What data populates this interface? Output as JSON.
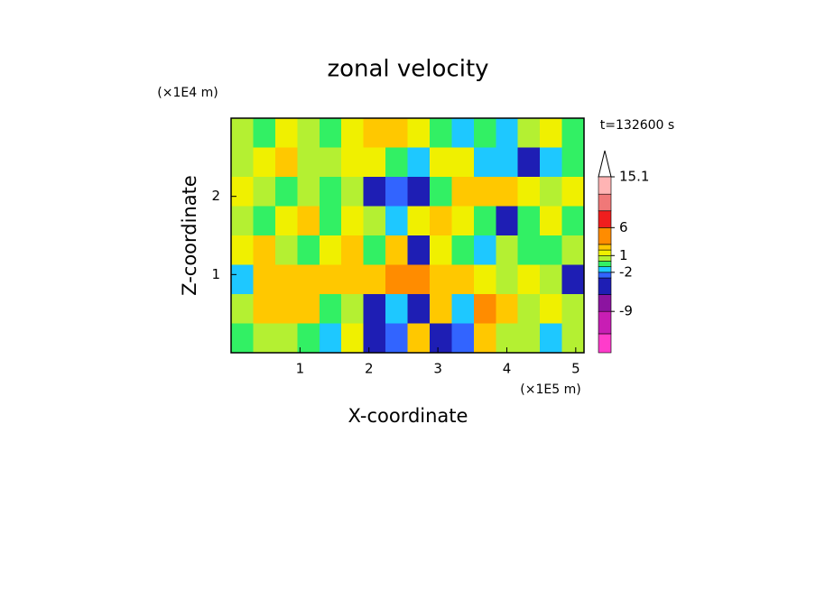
{
  "chart_data": {
    "type": "contour",
    "title": "zonal velocity",
    "xlabel": "X-coordinate",
    "ylabel": "Z-coordinate",
    "xunit": "(×1E5 m)",
    "yunit": "(×1E4 m)",
    "time_label": "t=132600 s",
    "xlim": [
      0,
      5.12
    ],
    "ylim": [
      0,
      3
    ],
    "xticks": [
      1,
      2,
      3,
      4,
      5
    ],
    "yticks": [
      1,
      2
    ],
    "x": [
      0.16,
      0.48,
      0.8,
      1.12,
      1.44,
      1.76,
      2.08,
      2.4,
      2.72,
      3.04,
      3.36,
      3.68,
      4.0,
      4.32,
      4.64,
      4.96
    ],
    "z": [
      2.81,
      2.44,
      2.06,
      1.69,
      1.31,
      0.94,
      0.56,
      0.19
    ],
    "values": [
      [
        0.5,
        -0.5,
        1.5,
        0.5,
        -0.5,
        1.5,
        2.5,
        2,
        1,
        -0.5,
        -1.5,
        -0.5,
        -1.5,
        0.5,
        1.5,
        -0.5
      ],
      [
        0.5,
        1.5,
        2,
        0.5,
        0.5,
        1.5,
        1.5,
        -0.5,
        -1.5,
        1,
        1.5,
        -1.5,
        -1.5,
        -4,
        -1.5,
        -0.5
      ],
      [
        1.5,
        0.5,
        -0.5,
        0.5,
        -0.5,
        0.5,
        -4,
        -2.5,
        -4,
        -0.5,
        2,
        2.5,
        2,
        1.5,
        0.5,
        1.5
      ],
      [
        0.5,
        -0.5,
        1.5,
        2,
        -0.5,
        1.5,
        0.5,
        -1.5,
        1.5,
        2.5,
        1.5,
        -0.5,
        -4,
        -0.5,
        1.5,
        -0.5
      ],
      [
        1.5,
        2,
        0.5,
        -0.5,
        1.5,
        2.5,
        -0.5,
        2,
        -4,
        1.5,
        -0.5,
        -1.5,
        0.5,
        -0.5,
        -0.5,
        0.5
      ],
      [
        -1.5,
        2,
        2,
        2,
        2,
        2.5,
        2.5,
        4,
        4.5,
        2.5,
        2,
        1.5,
        0.5,
        1.5,
        0.5,
        -4
      ],
      [
        0.5,
        2.5,
        2.5,
        2,
        -0.5,
        0.5,
        -4,
        -1.5,
        -4,
        2,
        -1.5,
        4,
        2,
        0.5,
        1.5,
        0.5
      ],
      [
        -0.5,
        0.5,
        0.5,
        -0.5,
        -1.5,
        1.5,
        -4,
        -2.5,
        2.5,
        -4,
        -2.5,
        2,
        0.5,
        0.5,
        -1.5,
        0.5
      ]
    ],
    "colorbar": {
      "levels": [
        -16.4,
        -13,
        -9,
        -6,
        -3,
        -2,
        -1,
        0,
        1,
        2,
        3,
        6,
        9,
        12,
        15.1
      ],
      "colors": [
        "#ff3ccb",
        "#c81eb4",
        "#8c14a0",
        "#1e1eb4",
        "#3264ff",
        "#1ec8ff",
        "#32f064",
        "#b4f032",
        "#f0f000",
        "#ffc800",
        "#ff8c00",
        "#f01e1e",
        "#f07878",
        "#ffb4b4"
      ],
      "ticks": [
        -9,
        -2,
        1,
        6,
        15.1
      ]
    }
  }
}
